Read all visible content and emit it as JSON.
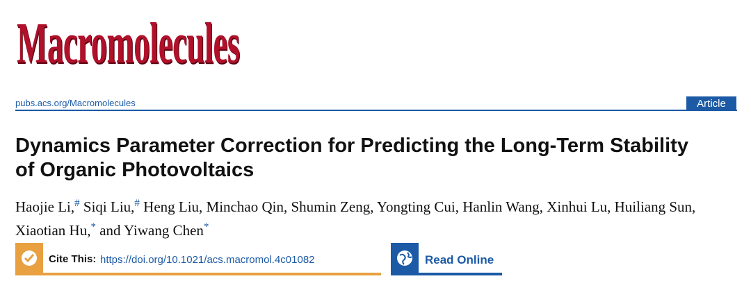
{
  "header": {
    "journal": "Macromolecules",
    "url": "pubs.acs.org/Macromolecules",
    "article_type": "Article"
  },
  "article": {
    "title": "Dynamics Parameter Correction for Predicting the Long-Term Stability of Organic Photovoltaics",
    "authors": [
      {
        "text": "Haojie Li,",
        "mark": "#"
      },
      {
        "text": "Siqi Liu,",
        "mark": "#"
      },
      {
        "text": "Heng Liu, Minchao Qin, Shumin Zeng, Yongting Cui, Hanlin Wang, Xinhui Lu, Huiliang Sun, Xiaotian Hu,",
        "mark": "*"
      },
      {
        "text": "and Yiwang Chen",
        "mark": "*"
      }
    ]
  },
  "links": {
    "cite_label": "Cite This:",
    "doi": "https://doi.org/10.1021/acs.macromol.4c01082",
    "read_online": "Read Online"
  }
}
